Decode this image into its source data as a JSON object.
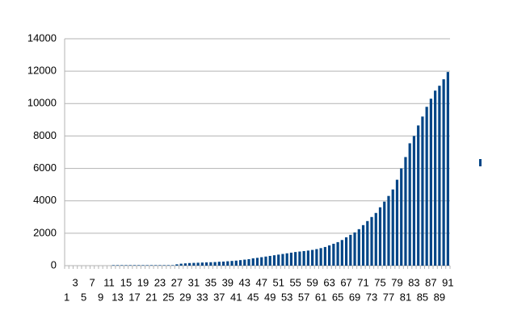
{
  "chart_data": {
    "type": "bar",
    "categories": [
      1,
      null,
      3,
      null,
      5,
      null,
      7,
      null,
      9,
      null,
      11,
      null,
      13,
      null,
      15,
      null,
      17,
      null,
      19,
      null,
      21,
      null,
      23,
      null,
      25,
      null,
      27,
      null,
      29,
      null,
      31,
      null,
      33,
      null,
      35,
      null,
      37,
      null,
      39,
      null,
      41,
      null,
      43,
      null,
      45,
      null,
      47,
      null,
      49,
      null,
      51,
      null,
      53,
      null,
      55,
      null,
      57,
      null,
      59,
      null,
      61,
      null,
      63,
      null,
      65,
      null,
      67,
      null,
      69,
      null,
      71,
      null,
      73,
      null,
      75,
      null,
      77,
      null,
      79,
      null,
      81,
      null,
      83,
      null,
      85,
      null,
      87,
      null,
      89,
      null,
      91
    ],
    "values": [
      0,
      0,
      0,
      0,
      0,
      0,
      0,
      0,
      0,
      0,
      0,
      30,
      30,
      30,
      30,
      30,
      30,
      30,
      30,
      30,
      30,
      30,
      30,
      30,
      30,
      30,
      80,
      120,
      140,
      160,
      170,
      180,
      190,
      200,
      210,
      220,
      240,
      250,
      270,
      290,
      310,
      340,
      370,
      400,
      450,
      480,
      520,
      560,
      600,
      640,
      680,
      720,
      760,
      800,
      840,
      870,
      900,
      930,
      970,
      1020,
      1080,
      1150,
      1250,
      1350,
      1450,
      1580,
      1750,
      1900,
      2050,
      2250,
      2500,
      2750,
      3000,
      3250,
      3600,
      3950,
      4300,
      4700,
      5300,
      6000,
      6700,
      7550,
      8000,
      8650,
      9200,
      9800,
      10300,
      10800,
      11100,
      11500,
      11950
    ],
    "color": "#004586",
    "ylim": [
      0,
      14000
    ],
    "yticks": [
      0,
      2000,
      4000,
      6000,
      8000,
      10000,
      12000,
      14000
    ],
    "grid": true,
    "legend": "right"
  }
}
